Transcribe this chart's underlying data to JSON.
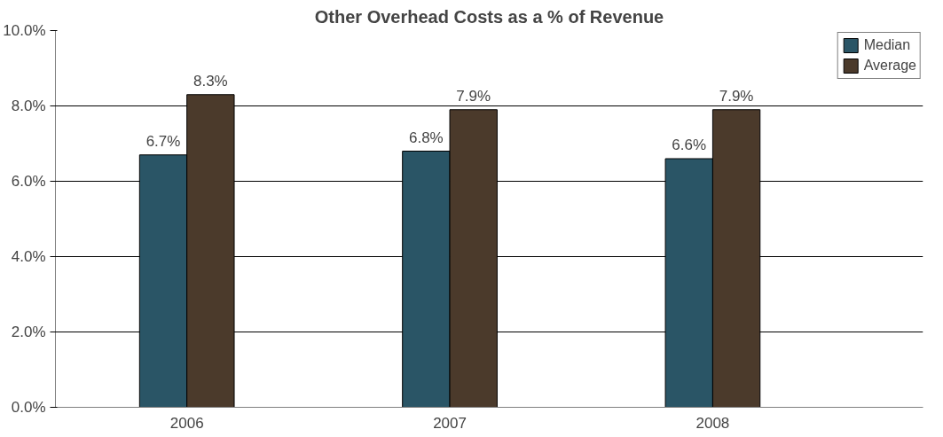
{
  "chart_data": {
    "type": "bar",
    "title": "Other Overhead Costs as a % of Revenue",
    "categories": [
      "2006",
      "2007",
      "2008"
    ],
    "series": [
      {
        "name": "Median",
        "color": "#2a5566",
        "values": [
          6.7,
          6.8,
          6.6
        ],
        "value_labels": [
          "6.7%",
          "6.8%",
          "6.6%"
        ]
      },
      {
        "name": "Average",
        "color": "#4b3a2b",
        "values": [
          8.3,
          7.9,
          7.9
        ],
        "value_labels": [
          "8.3%",
          "7.9%",
          "7.9%"
        ]
      }
    ],
    "ylim": [
      0,
      10
    ],
    "yticks": [
      {
        "value": 0,
        "label": "0.0%"
      },
      {
        "value": 2,
        "label": "2.0%"
      },
      {
        "value": 4,
        "label": "4.0%"
      },
      {
        "value": 6,
        "label": "6.0%"
      },
      {
        "value": 8,
        "label": "8.0%"
      },
      {
        "value": 10,
        "label": "10.0%"
      }
    ],
    "grid": "y",
    "legend": "top right"
  }
}
